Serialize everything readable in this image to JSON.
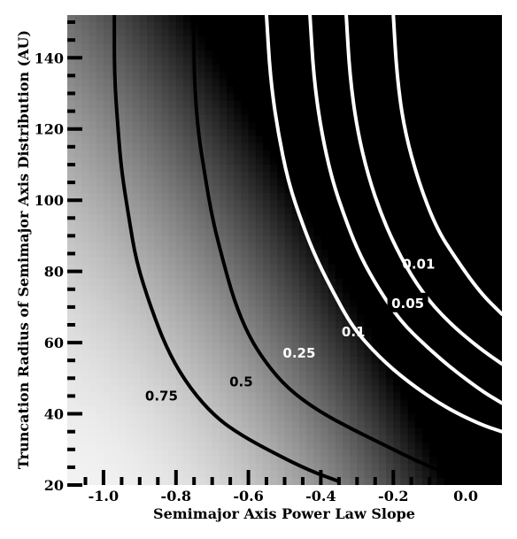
{
  "chart_data": {
    "type": "heatmap",
    "title": "",
    "xlabel": "Semimajor Axis Power Law Slope",
    "ylabel": "Truncation Radius of Semimajor Axis Distribution (AU)",
    "xlim": [
      -1.1,
      0.1
    ],
    "ylim": [
      20,
      152
    ],
    "x_ticks": [
      "-1.0",
      "-0.8",
      "-0.6",
      "-0.4",
      "-0.2",
      "0.0"
    ],
    "x_tick_values": [
      -1.0,
      -0.8,
      -0.6,
      -0.4,
      -0.2,
      0.0
    ],
    "y_ticks": [
      "20",
      "40",
      "60",
      "80",
      "100",
      "120",
      "140"
    ],
    "y_tick_values": [
      20,
      40,
      60,
      80,
      100,
      120,
      140
    ],
    "colormap": "grayscale (light = high, dark = low)",
    "contours": [
      {
        "label": "0.75",
        "color": "#000000",
        "label_color": "#000000",
        "label_bg": "",
        "label_x": -0.84,
        "label_y": 45,
        "points": [
          [
            -0.97,
            152
          ],
          [
            -0.97,
            135
          ],
          [
            -0.96,
            120
          ],
          [
            -0.95,
            108
          ],
          [
            -0.93,
            95
          ],
          [
            -0.91,
            83
          ],
          [
            -0.87,
            70
          ],
          [
            -0.82,
            57
          ],
          [
            -0.76,
            47
          ],
          [
            -0.69,
            39
          ],
          [
            -0.62,
            34
          ],
          [
            -0.53,
            29
          ],
          [
            -0.43,
            24
          ],
          [
            -0.35,
            21
          ]
        ]
      },
      {
        "label": "0.5",
        "color": "#000000",
        "label_color": "#000000",
        "label_bg": "",
        "label_x": -0.62,
        "label_y": 49,
        "points": [
          [
            -0.75,
            152
          ],
          [
            -0.75,
            135
          ],
          [
            -0.74,
            120
          ],
          [
            -0.72,
            107
          ],
          [
            -0.7,
            95
          ],
          [
            -0.67,
            83
          ],
          [
            -0.64,
            72
          ],
          [
            -0.6,
            62
          ],
          [
            -0.55,
            54
          ],
          [
            -0.49,
            47
          ],
          [
            -0.41,
            41
          ],
          [
            -0.32,
            36
          ],
          [
            -0.22,
            31
          ],
          [
            -0.12,
            26
          ],
          [
            -0.02,
            22
          ],
          [
            0.02,
            20
          ]
        ]
      },
      {
        "label": "0.25",
        "color": "#ffffff",
        "label_color": "#ffffff",
        "label_bg": "",
        "label_x": -0.46,
        "label_y": 57,
        "points": [
          [
            -0.55,
            152
          ],
          [
            -0.54,
            135
          ],
          [
            -0.52,
            120
          ],
          [
            -0.49,
            105
          ],
          [
            -0.45,
            93
          ],
          [
            -0.41,
            83
          ],
          [
            -0.36,
            73
          ],
          [
            -0.31,
            64
          ],
          [
            -0.24,
            56
          ],
          [
            -0.16,
            49
          ],
          [
            -0.06,
            42
          ],
          [
            0.04,
            37
          ],
          [
            0.1,
            35
          ]
        ]
      },
      {
        "label": "0.1",
        "color": "#ffffff",
        "label_color": "#ffffff",
        "label_bg": "",
        "label_x": -0.31,
        "label_y": 63,
        "points": [
          [
            -0.43,
            152
          ],
          [
            -0.42,
            135
          ],
          [
            -0.4,
            120
          ],
          [
            -0.37,
            106
          ],
          [
            -0.33,
            94
          ],
          [
            -0.29,
            84
          ],
          [
            -0.24,
            75
          ],
          [
            -0.18,
            66
          ],
          [
            -0.11,
            59
          ],
          [
            -0.03,
            52
          ],
          [
            0.05,
            46
          ],
          [
            0.1,
            43
          ]
        ]
      },
      {
        "label": "0.05",
        "color": "#ffffff",
        "label_color": "#ffffff",
        "label_bg": "#000000",
        "label_x": -0.16,
        "label_y": 71,
        "points": [
          [
            -0.33,
            152
          ],
          [
            -0.32,
            135
          ],
          [
            -0.3,
            120
          ],
          [
            -0.27,
            107
          ],
          [
            -0.23,
            95
          ],
          [
            -0.18,
            84
          ],
          [
            -0.12,
            74
          ],
          [
            -0.05,
            66
          ],
          [
            0.03,
            59
          ],
          [
            0.1,
            54
          ]
        ]
      },
      {
        "label": "0.01",
        "color": "#ffffff",
        "label_color": "#ffffff",
        "label_bg": "",
        "label_x": -0.13,
        "label_y": 82,
        "points": [
          [
            -0.2,
            152
          ],
          [
            -0.19,
            135
          ],
          [
            -0.17,
            120
          ],
          [
            -0.13,
            105
          ],
          [
            -0.08,
            92
          ],
          [
            -0.03,
            84
          ],
          [
            0.04,
            74
          ],
          [
            0.1,
            68
          ]
        ]
      }
    ]
  }
}
